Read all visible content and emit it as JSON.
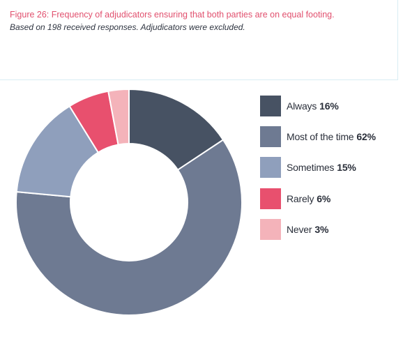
{
  "header": {
    "title": "Figure 26: Frequency of adjudicators ensuring that both parties are on equal footing.",
    "subtitle": "Based on 198 received responses. Adjudicators were excluded."
  },
  "chart_data": {
    "type": "pie",
    "style": "donut",
    "title": "Figure 26: Frequency of adjudicators ensuring that both parties are on equal footing.",
    "subtitle": "Based on 198 received responses. Adjudicators were excluded.",
    "legend_placement": "right",
    "start": "top",
    "direction": "clockwise",
    "slices": [
      {
        "label": "Always",
        "value": 16,
        "display": "16%",
        "color": "#475263"
      },
      {
        "label": "Most of the time",
        "value": 62,
        "display": "62%",
        "color": "#6e7a92"
      },
      {
        "label": "Sometimes",
        "value": 15,
        "display": "15%",
        "color": "#8f9fbc"
      },
      {
        "label": "Rarely",
        "value": 6,
        "display": "6%",
        "color": "#e8506e"
      },
      {
        "label": "Never",
        "value": 3,
        "display": "3%",
        "color": "#f4b3ba"
      }
    ]
  }
}
